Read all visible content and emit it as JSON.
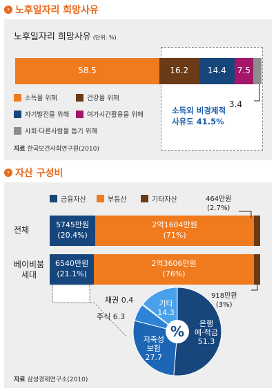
{
  "section1": {
    "title": "노후일자리 희망사유",
    "heading": "노후일자리 희망사유",
    "unit": "(단위: %)",
    "callout_line1": "소득외 비경제적",
    "callout_line2": "사유도 41.5%",
    "source_label": "자료",
    "source": "한국보건사회연구원(2010)"
  },
  "section2": {
    "title": "자산 구성비",
    "legend": [
      "금융자산",
      "부동산",
      "기타자산"
    ],
    "source_label": "자료",
    "source": "삼성경제연구소(2010)",
    "pie_center": "%"
  },
  "colors": {
    "orange": "#f07a1e",
    "brown": "#6b3a16",
    "navy": "#17467d",
    "magenta": "#a3166a",
    "gray": "#8c8c8c",
    "panel": "#eeeeee",
    "accent": "#e86a1c"
  },
  "chart_data": [
    {
      "type": "bar",
      "title": "노후일자리 희망사유",
      "unit": "(단위: %)",
      "stacked": true,
      "series": [
        {
          "name": "소득을 위해",
          "value": 58.5,
          "label": "58.5",
          "color": "#f07a1e"
        },
        {
          "name": "건강을 위해",
          "value": 16.2,
          "label": "16.2",
          "color": "#6b3a16"
        },
        {
          "name": "자기발전을 위해",
          "value": 14.4,
          "label": "14.4",
          "color": "#17467d"
        },
        {
          "name": "여가시간활용을 위해",
          "value": 7.5,
          "label": "7.5",
          "color": "#a3166a"
        },
        {
          "name": "사회·다른사람을 돕기 위해",
          "value": 3.4,
          "label": "3.4",
          "color": "#8c8c8c"
        }
      ]
    },
    {
      "type": "bar",
      "title": "자산 구성비",
      "stacked": true,
      "categories": [
        "전체",
        "베이비붐 세대"
      ],
      "series": [
        {
          "name": "금융자산",
          "values": [
            20.4,
            21.1
          ],
          "amounts": [
            "5745만원",
            "6540만원"
          ],
          "pcts": [
            "(20.4%)",
            "(21.1%)"
          ],
          "color": "#17467d"
        },
        {
          "name": "부동산",
          "values": [
            71,
            76
          ],
          "amounts": [
            "2억1604만원",
            "2억3606만원"
          ],
          "pcts": [
            "(71%)",
            "(76%)"
          ],
          "color": "#f07a1e"
        },
        {
          "name": "기타자산",
          "values": [
            2.7,
            3
          ],
          "amounts": [
            "464만원",
            "918만원"
          ],
          "pcts": [
            "(2.7%)",
            "(3%)"
          ],
          "color": "#6b3a16"
        }
      ]
    },
    {
      "type": "pie",
      "slices": [
        {
          "name": "은행 예·적금",
          "value": 51.3,
          "color": "#17467d"
        },
        {
          "name": "저축성 보험",
          "value": 27.7,
          "color": "#1c66b5"
        },
        {
          "name": "주식",
          "value": 6.3,
          "color": "#2f83d6"
        },
        {
          "name": "채권",
          "value": 0.4,
          "color": "#6fb0e8"
        },
        {
          "name": "기타",
          "value": 14.3,
          "color": "#49a2e9"
        }
      ]
    }
  ]
}
